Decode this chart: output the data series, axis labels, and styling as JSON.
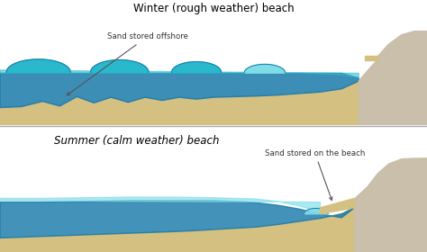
{
  "title_winter": "Winter (rough weather) beach",
  "title_summer": "Summer (calm weather) beach",
  "label_winter": "Sand stored offshore",
  "label_summer": "Sand stored on the beach",
  "bg_color": "#c9bfaa",
  "sand_color": "#d4c080",
  "water_dark": "#1a7aaa",
  "water_mid": "#2ab8cc",
  "water_light": "#80dde8",
  "white": "#ffffff",
  "divider_color": "#aaaaaa",
  "text_color": "#333333",
  "arrow_color": "#555555"
}
